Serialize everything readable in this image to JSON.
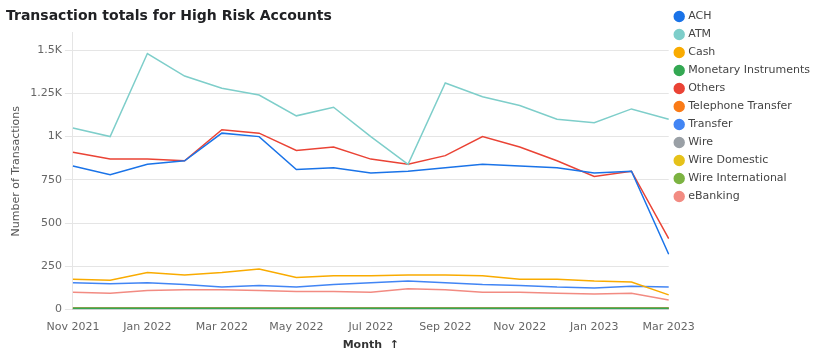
{
  "chart_data": {
    "type": "line",
    "title": "Transaction totals for High Risk Accounts",
    "xlabel": "Month  ↑",
    "ylabel": "Number of Transactions",
    "categories": [
      "Nov 2021",
      null,
      "Jan 2022",
      null,
      "Mar 2022",
      null,
      "May 2022",
      null,
      "Jul 2022",
      null,
      "Sep 2022",
      null,
      "Nov 2022",
      null,
      "Jan 2023",
      null,
      "Mar 2023"
    ],
    "series": [
      {
        "name": "ACH",
        "color": "#1A73E8",
        "values": [
          830,
          780,
          840,
          860,
          1020,
          1000,
          810,
          820,
          790,
          800,
          820,
          840,
          830,
          820,
          790,
          800,
          320
        ]
      },
      {
        "name": "ATM",
        "color": "#7ECECA",
        "values": [
          1050,
          1000,
          1480,
          1350,
          1280,
          1240,
          1120,
          1170,
          1000,
          840,
          1310,
          1230,
          1180,
          1100,
          1080,
          1160,
          1100
        ]
      },
      {
        "name": "Cash",
        "color": "#F9AB00",
        "values": [
          175,
          170,
          215,
          200,
          215,
          235,
          185,
          195,
          195,
          200,
          200,
          195,
          175,
          175,
          165,
          160,
          85
        ]
      },
      {
        "name": "Monetary Instruments",
        "color": "#34A853",
        "values": [
          8,
          8,
          8,
          8,
          8,
          8,
          8,
          8,
          8,
          8,
          8,
          8,
          8,
          8,
          8,
          8,
          8
        ]
      },
      {
        "name": "Others",
        "color": "#EA4335",
        "values": [
          910,
          870,
          870,
          860,
          1040,
          1020,
          920,
          940,
          870,
          840,
          890,
          1000,
          940,
          860,
          770,
          800,
          410
        ]
      },
      {
        "name": "Telephone Transfer",
        "color": "#FA7B17",
        "values": [
          8,
          8,
          8,
          8,
          8,
          8,
          8,
          8,
          8,
          8,
          8,
          8,
          8,
          8,
          8,
          8,
          8
        ]
      },
      {
        "name": "Transfer",
        "color": "#4285F4",
        "values": [
          155,
          150,
          155,
          145,
          130,
          140,
          130,
          145,
          155,
          165,
          155,
          145,
          140,
          130,
          125,
          135,
          130
        ]
      },
      {
        "name": "Wire",
        "color": "#9AA0A6",
        "values": [
          8,
          8,
          8,
          8,
          8,
          8,
          8,
          8,
          8,
          8,
          8,
          8,
          8,
          8,
          8,
          8,
          8
        ]
      },
      {
        "name": "Wire Domestic",
        "color": "#E6C21A",
        "values": [
          8,
          8,
          8,
          8,
          8,
          8,
          8,
          8,
          8,
          8,
          8,
          8,
          8,
          8,
          8,
          8,
          8
        ]
      },
      {
        "name": "Wire International",
        "color": "#7CB342",
        "values": [
          8,
          8,
          8,
          8,
          8,
          8,
          8,
          8,
          8,
          8,
          8,
          8,
          8,
          8,
          8,
          8,
          8
        ]
      },
      {
        "name": "eBanking",
        "color": "#F28B82",
        "values": [
          100,
          95,
          110,
          115,
          115,
          110,
          105,
          105,
          100,
          120,
          115,
          100,
          100,
          95,
          90,
          95,
          55
        ]
      }
    ],
    "ylim": [
      0,
      1600
    ],
    "yticks": [
      0,
      250,
      500,
      750,
      {
        "value": 1000,
        "label": "1K"
      },
      {
        "value": 1250,
        "label": "1.25K"
      },
      {
        "value": 1500,
        "label": "1.5K"
      }
    ],
    "grid": "y",
    "legend": "right"
  }
}
